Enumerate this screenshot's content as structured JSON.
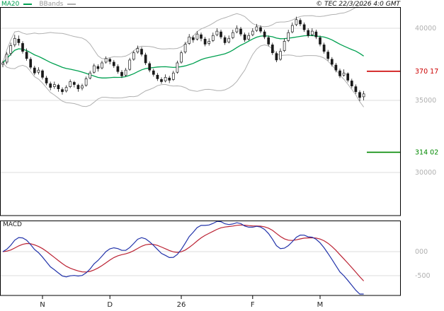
{
  "header": {
    "ma20_label": "MA20",
    "bbands_label": "BBands",
    "copyright": "© TEC 22/3/2026 4:0 GMT"
  },
  "colors": {
    "ma20": "#00a050",
    "bbands": "#b0b0b0",
    "macd": "#2233aa",
    "signal": "#bb2233",
    "grid": "#dcdcdc",
    "level_red": "#cc0000",
    "level_green": "#008800",
    "tick_text": "#b0b0b0",
    "month_text": "#222222",
    "frame": "#000000",
    "candle": "#1a1a1a"
  },
  "chart_data": {
    "type": "candlestick",
    "title": "Daily candlestick chart with MA20, Bollinger Bands and MACD",
    "x_ticks": [
      {
        "label": "N",
        "index": 10
      },
      {
        "label": "D",
        "index": 27
      },
      {
        "label": "26",
        "index": 45
      },
      {
        "label": "F",
        "index": 63
      },
      {
        "label": "M",
        "index": 80
      }
    ],
    "price_panel": {
      "y_tick_labels": [
        "40000",
        "35000",
        "30000"
      ],
      "y_tick_values": [
        40000,
        35000,
        30000
      ],
      "levels": [
        {
          "label": "370 17",
          "value": 37017,
          "color_key": "level_red"
        },
        {
          "label": "314 02",
          "value": 31402,
          "color_key": "level_green"
        }
      ],
      "overlays": [
        "MA20",
        "Bollinger Bands (20,2)"
      ],
      "candles_ohlc": [
        [
          37500,
          37750,
          37300,
          37600
        ],
        [
          37650,
          38350,
          37500,
          38200
        ],
        [
          38250,
          39000,
          38100,
          38800
        ],
        [
          38850,
          39550,
          38700,
          39300
        ],
        [
          39250,
          39500,
          38800,
          39000
        ],
        [
          38950,
          39100,
          38250,
          38400
        ],
        [
          38350,
          38600,
          37750,
          37900
        ],
        [
          37850,
          38000,
          37150,
          37300
        ],
        [
          37250,
          37400,
          36750,
          36900
        ],
        [
          36950,
          37300,
          36800,
          37100
        ],
        [
          37050,
          37150,
          36450,
          36600
        ],
        [
          36550,
          36700,
          36050,
          36200
        ],
        [
          36150,
          36300,
          35700,
          35900
        ],
        [
          35950,
          36300,
          35800,
          36100
        ],
        [
          36050,
          36150,
          35600,
          35800
        ],
        [
          35750,
          35900,
          35400,
          35600
        ],
        [
          35650,
          36050,
          35550,
          35900
        ],
        [
          35950,
          36450,
          35850,
          36300
        ],
        [
          36250,
          36350,
          35900,
          36100
        ],
        [
          36050,
          36150,
          35600,
          35800
        ],
        [
          35850,
          36150,
          35700,
          36000
        ],
        [
          36050,
          36650,
          35950,
          36500
        ],
        [
          36550,
          37050,
          36450,
          36900
        ],
        [
          36950,
          37550,
          36850,
          37400
        ],
        [
          37350,
          37500,
          37000,
          37200
        ],
        [
          37250,
          37750,
          37150,
          37600
        ],
        [
          37650,
          38050,
          37550,
          37900
        ],
        [
          37850,
          37950,
          37500,
          37700
        ],
        [
          37650,
          37800,
          37250,
          37400
        ],
        [
          37350,
          37500,
          36850,
          37000
        ],
        [
          36950,
          37100,
          36550,
          36700
        ],
        [
          36750,
          37250,
          36650,
          37100
        ],
        [
          37150,
          37950,
          37050,
          37800
        ],
        [
          37850,
          38450,
          37750,
          38300
        ],
        [
          38350,
          38800,
          38250,
          38600
        ],
        [
          38550,
          38700,
          38050,
          38200
        ],
        [
          38150,
          38300,
          37450,
          37600
        ],
        [
          37550,
          37700,
          36950,
          37100
        ],
        [
          37050,
          37200,
          36650,
          36800
        ],
        [
          36750,
          36900,
          36350,
          36500
        ],
        [
          36450,
          36600,
          36150,
          36300
        ],
        [
          36350,
          36800,
          36250,
          36600
        ],
        [
          36550,
          36700,
          36200,
          36400
        ],
        [
          36450,
          37050,
          36350,
          36900
        ],
        [
          36950,
          37750,
          36850,
          37600
        ],
        [
          37650,
          38450,
          37550,
          38300
        ],
        [
          38350,
          39050,
          38250,
          38900
        ],
        [
          38950,
          39600,
          38850,
          39400
        ],
        [
          39350,
          39500,
          39000,
          39200
        ],
        [
          39250,
          39800,
          39150,
          39600
        ],
        [
          39550,
          39700,
          39100,
          39300
        ],
        [
          39250,
          39400,
          38750,
          38900
        ],
        [
          38950,
          39300,
          38800,
          39100
        ],
        [
          39150,
          39700,
          39050,
          39500
        ],
        [
          39550,
          40000,
          39450,
          39800
        ],
        [
          39750,
          39900,
          39250,
          39400
        ],
        [
          39350,
          39500,
          38850,
          39000
        ],
        [
          39050,
          39500,
          38950,
          39300
        ],
        [
          39350,
          39900,
          39250,
          39700
        ],
        [
          39750,
          40200,
          39650,
          40000
        ],
        [
          39950,
          40100,
          39450,
          39600
        ],
        [
          39550,
          39700,
          39050,
          39200
        ],
        [
          39250,
          39700,
          39150,
          39500
        ],
        [
          39550,
          40000,
          39450,
          39800
        ],
        [
          39850,
          40300,
          39750,
          40100
        ],
        [
          40050,
          40200,
          39650,
          39800
        ],
        [
          39750,
          39900,
          39250,
          39400
        ],
        [
          39350,
          39500,
          38750,
          38900
        ],
        [
          38850,
          39000,
          38150,
          38300
        ],
        [
          38250,
          38400,
          37650,
          37800
        ],
        [
          37850,
          38600,
          37750,
          38400
        ],
        [
          38450,
          39300,
          38350,
          39100
        ],
        [
          39150,
          39900,
          39050,
          39700
        ],
        [
          39750,
          40400,
          39650,
          40200
        ],
        [
          40250,
          40800,
          40150,
          40600
        ],
        [
          40550,
          40700,
          40150,
          40300
        ],
        [
          40250,
          40400,
          39750,
          39900
        ],
        [
          39850,
          40000,
          39350,
          39500
        ],
        [
          39550,
          40000,
          39450,
          39800
        ],
        [
          39750,
          39900,
          39250,
          39400
        ],
        [
          39350,
          39500,
          38750,
          38900
        ],
        [
          38850,
          39000,
          38250,
          38400
        ],
        [
          38350,
          38500,
          37750,
          37900
        ],
        [
          37850,
          38000,
          37350,
          37500
        ],
        [
          37450,
          37600,
          36950,
          37100
        ],
        [
          37050,
          37200,
          36550,
          36700
        ],
        [
          36750,
          37150,
          36650,
          36900
        ],
        [
          36850,
          36950,
          36250,
          36400
        ],
        [
          36350,
          36500,
          35850,
          36000
        ],
        [
          35950,
          36100,
          35450,
          35600
        ],
        [
          35550,
          35700,
          34950,
          35200
        ],
        [
          35250,
          35650,
          35000,
          35450
        ]
      ]
    },
    "macd_panel": {
      "label": "MACD",
      "y_tick_labels": [
        "000",
        "-500"
      ],
      "y_tick_values": [
        0,
        -500
      ],
      "series": [
        "MACD (EMA12-EMA26)",
        "Signal (EMA9 of MACD)"
      ]
    }
  }
}
